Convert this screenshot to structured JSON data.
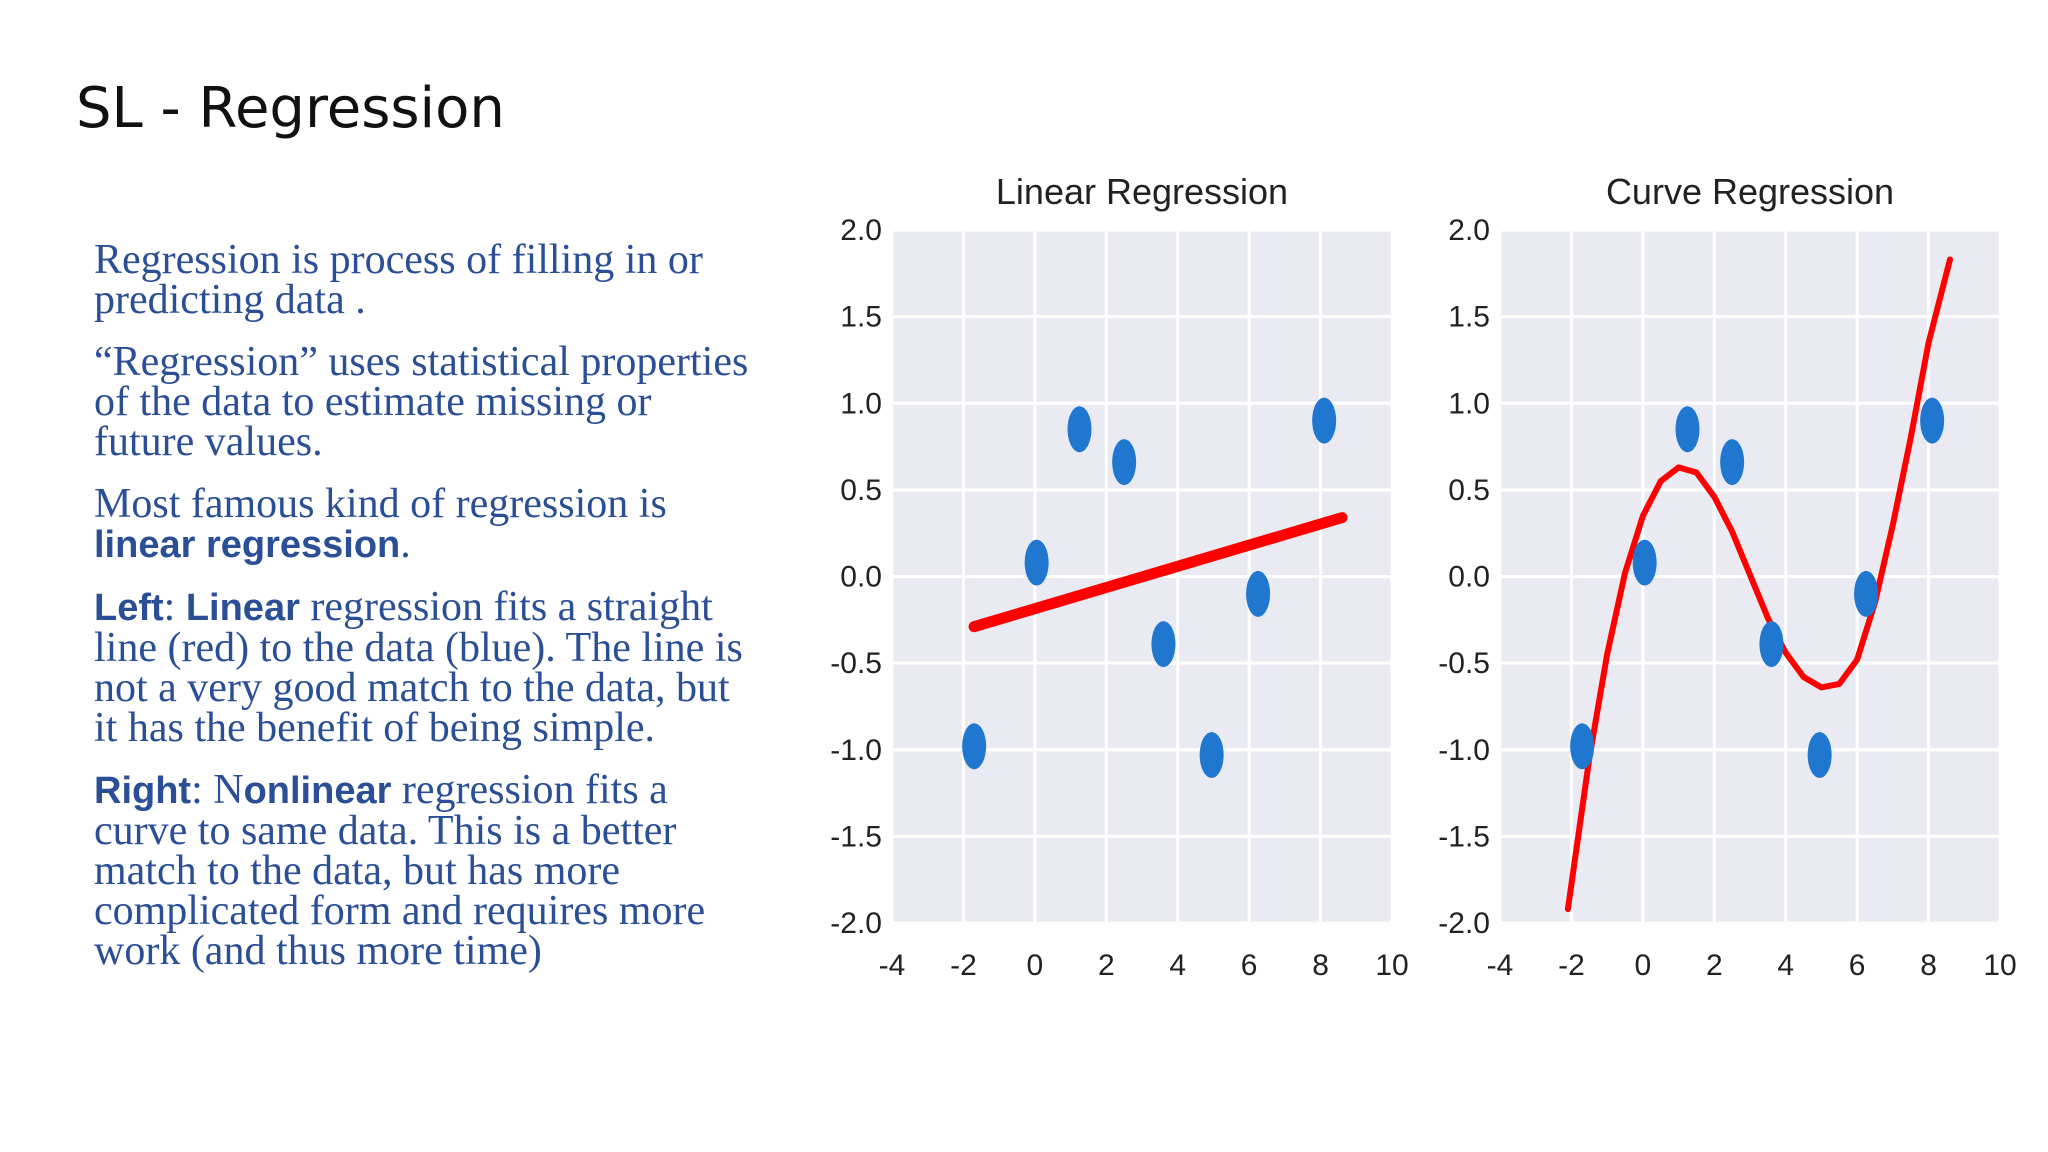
{
  "slide": {
    "title": "SL - Regression"
  },
  "text": {
    "p1": "Regression is process of filling in or predicting data .",
    "p2": "“Regression” uses statistical properties of the data to estimate missing or future values.",
    "p3_pre": "Most famous kind of regression is ",
    "p3_bold": "linear regression",
    "p3_post": ".",
    "p4_b1": "Left",
    "p4_m1": ": ",
    "p4_b2": "Linear",
    "p4_rest": " regression fits a straight line (red) to the data (blue). The line is not a very good match to the data, but it has the benefit of being simple.",
    "p5_b1": "Right",
    "p5_m1": ": N",
    "p5_b2": "onlinear",
    "p5_rest": " regression fits a curve to same data. This is a better match to the data, but has more complicated form and requires more work (and thus more time)"
  },
  "chart_data": [
    {
      "type": "scatter",
      "title": "Linear Regression",
      "xlim": [
        -4,
        10
      ],
      "ylim": [
        -2.0,
        2.0
      ],
      "xticks": [
        -4,
        -2,
        0,
        2,
        4,
        6,
        8,
        10
      ],
      "yticks": [
        -2.0,
        -1.5,
        -1.0,
        -0.5,
        0.0,
        0.5,
        1.0,
        1.5,
        2.0
      ],
      "xtick_labels": [
        "-4",
        "-2",
        "0",
        "2",
        "4",
        "6",
        "8",
        "10"
      ],
      "ytick_labels": [
        "-2.0",
        "-1.5",
        "-1.0",
        "-0.5",
        "0.0",
        "0.5",
        "1.0",
        "1.5",
        "2.0"
      ],
      "grid": true,
      "points": {
        "x": [
          -1.7,
          0.05,
          1.25,
          2.5,
          3.6,
          4.95,
          6.25,
          8.1
        ],
        "y": [
          -0.98,
          0.08,
          0.85,
          0.66,
          -0.39,
          -1.03,
          -0.1,
          0.9
        ],
        "color": "#1f77d0"
      },
      "fit": {
        "kind": "line",
        "x": [
          -1.7,
          8.6
        ],
        "y": [
          -0.29,
          0.34
        ],
        "color": "#ff0000"
      }
    },
    {
      "type": "scatter",
      "title": "Curve Regression",
      "xlim": [
        -4,
        10
      ],
      "ylim": [
        -2.0,
        2.0
      ],
      "xticks": [
        -4,
        -2,
        0,
        2,
        4,
        6,
        8,
        10
      ],
      "yticks": [
        -2.0,
        -1.5,
        -1.0,
        -0.5,
        0.0,
        0.5,
        1.0,
        1.5,
        2.0
      ],
      "xtick_labels": [
        "-4",
        "-2",
        "0",
        "2",
        "4",
        "6",
        "8",
        "10"
      ],
      "ytick_labels": [
        "-2.0",
        "-1.5",
        "-1.0",
        "-0.5",
        "0.0",
        "0.5",
        "1.0",
        "1.5",
        "2.0"
      ],
      "grid": true,
      "points": {
        "x": [
          -1.7,
          0.05,
          1.25,
          2.5,
          3.6,
          4.95,
          6.25,
          8.1
        ],
        "y": [
          -0.98,
          0.08,
          0.85,
          0.66,
          -0.39,
          -1.03,
          -0.1,
          0.9
        ],
        "color": "#1f77d0"
      },
      "fit": {
        "kind": "curve",
        "x": [
          -2.1,
          -1.5,
          -1.0,
          -0.5,
          0.0,
          0.5,
          1.0,
          1.5,
          2.0,
          2.5,
          3.0,
          3.5,
          4.0,
          4.5,
          5.0,
          5.5,
          6.0,
          6.5,
          7.0,
          7.5,
          8.0,
          8.6
        ],
        "y": [
          -1.92,
          -1.05,
          -0.45,
          0.02,
          0.35,
          0.55,
          0.63,
          0.6,
          0.46,
          0.26,
          0.01,
          -0.24,
          -0.44,
          -0.58,
          -0.64,
          -0.62,
          -0.48,
          -0.15,
          0.3,
          0.8,
          1.35,
          1.83
        ],
        "color": "#ff0000"
      }
    }
  ]
}
